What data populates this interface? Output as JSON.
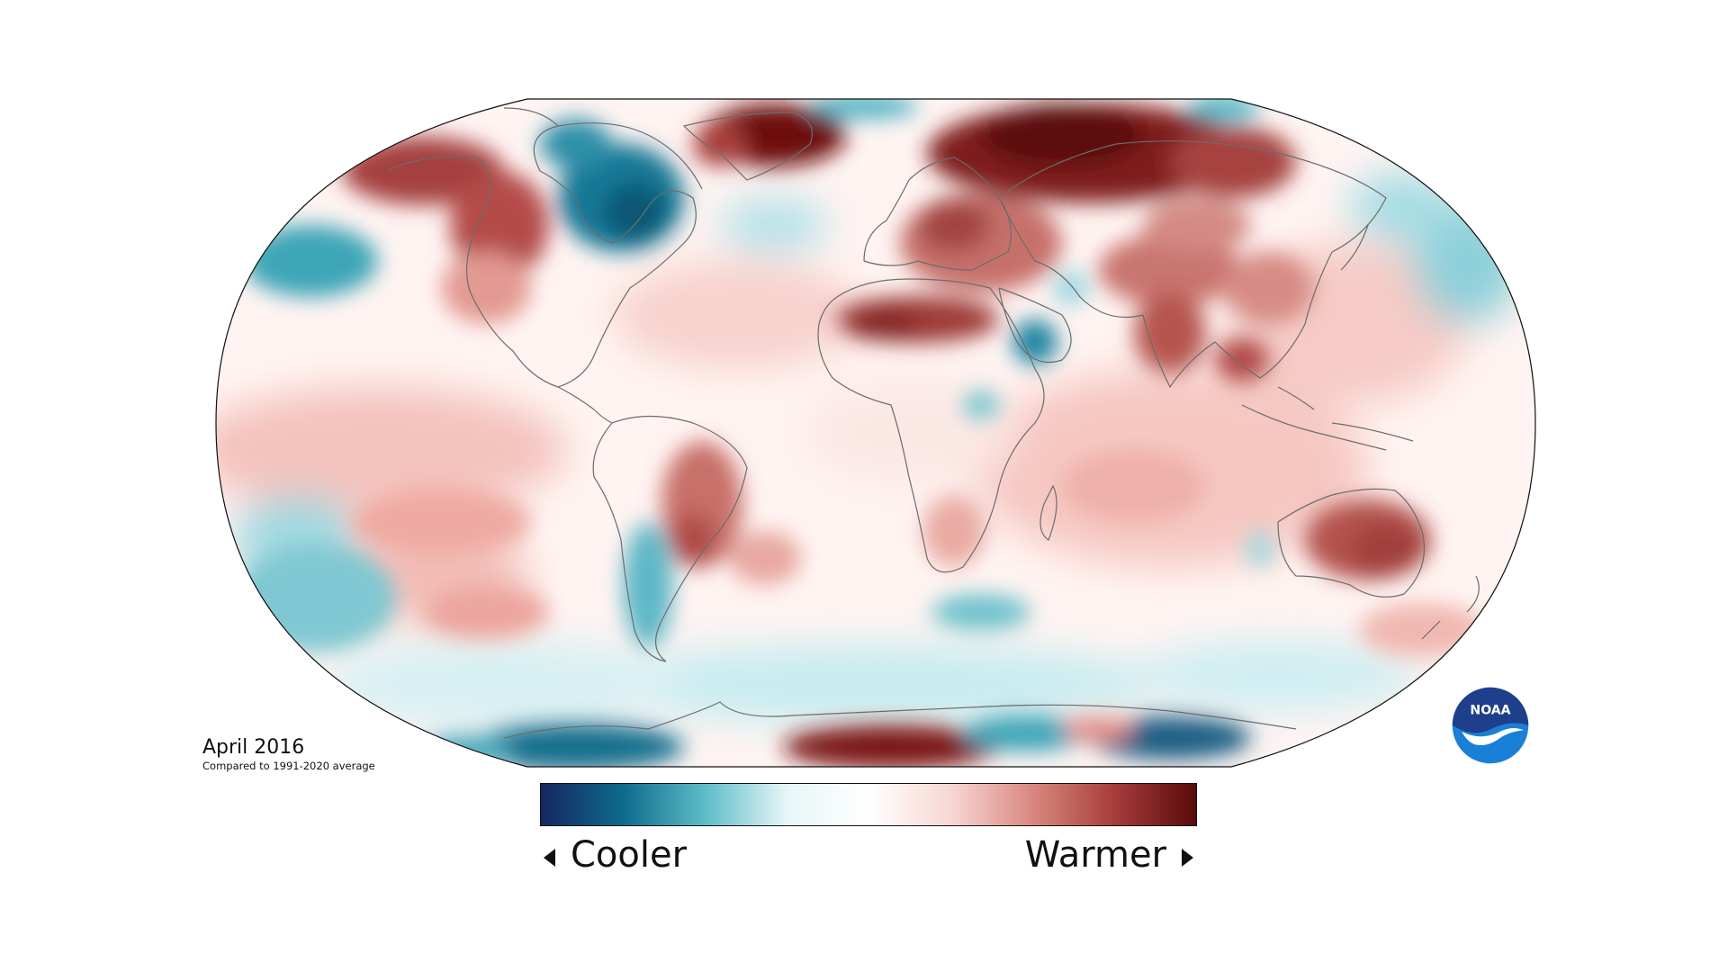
{
  "map": {
    "period_label": "April 2016",
    "baseline_note": "Compared to 1991-2020 average",
    "projection": "Robinson-style world map",
    "variable": "surface temperature anomaly"
  },
  "legend": {
    "cooler_label": "Cooler",
    "warmer_label": "Warmer",
    "gradient_colors": [
      "#15275f",
      "#0e6b8c",
      "#5ebcc9",
      "#e6f6f8",
      "#ffffff",
      "#f8d7d3",
      "#d98880",
      "#a63d3c",
      "#5a0a0a"
    ]
  },
  "logo": {
    "text": "NOAA",
    "colors": {
      "top": "#1d3f8c",
      "bottom": "#1a7fd6",
      "bird": "#ffffff"
    }
  },
  "anomaly_regions": [
    {
      "region": "Alaska",
      "anomaly": "warmer"
    },
    {
      "region": "Greenland",
      "anomaly": "much warmer"
    },
    {
      "region": "Eastern Canada",
      "anomaly": "cooler"
    },
    {
      "region": "Northern Russia",
      "anomaly": "much warmer"
    },
    {
      "region": "Northern Africa",
      "anomaly": "warmer"
    },
    {
      "region": "Arabian Peninsula",
      "anomaly": "cooler"
    },
    {
      "region": "Central South America",
      "anomaly": "warmer"
    },
    {
      "region": "Australia",
      "anomaly": "warmer"
    },
    {
      "region": "Antarctica",
      "anomaly": "mixed"
    },
    {
      "region": "Southern Ocean",
      "anomaly": "cooler"
    },
    {
      "region": "North Pacific",
      "anomaly": "cooler"
    }
  ],
  "colors": {
    "warm_strong": "#6e0f10",
    "warm_mid": "#b04a48",
    "warm_light": "#f1b9b3",
    "cool_strong": "#0d5f7a",
    "cool_mid": "#4fb3c4",
    "cool_light": "#c8ecf0",
    "neutral": "#ffffff",
    "coastline": "#6c6c6c"
  }
}
